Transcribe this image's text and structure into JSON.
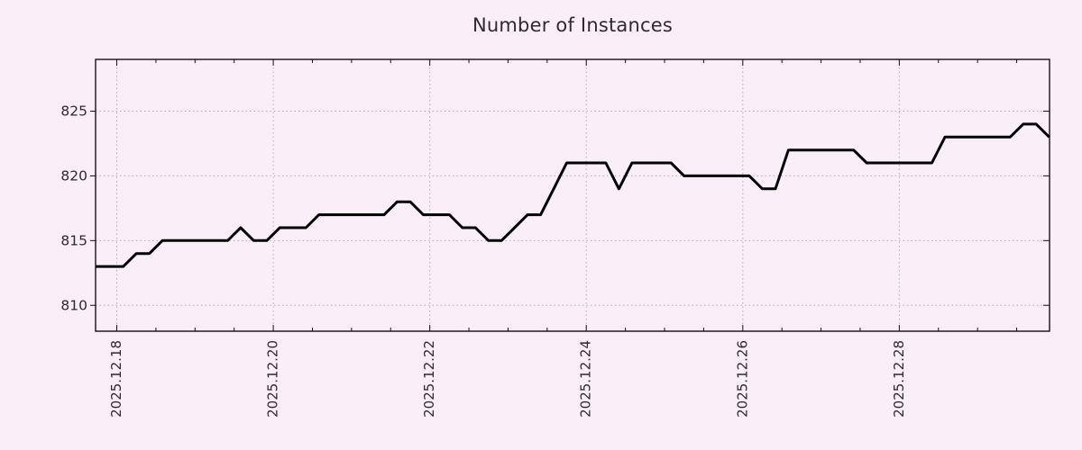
{
  "chart_data": {
    "type": "line",
    "title": "Number of Instances",
    "xlabel": "",
    "ylabel": "",
    "legend": "none",
    "grid": "dotted lines at major ticks, both axes",
    "x_axis": {
      "tick_labels": [
        "2025.12.18",
        "2025.12.20",
        "2025.12.22",
        "2025.12.24",
        "2025.12.26",
        "2025.12.28"
      ],
      "tick_day_offsets": [
        0,
        2,
        4,
        6,
        8,
        10
      ],
      "minor_tick_every_days": 0.5,
      "range_days": [
        -0.271,
        11.92
      ],
      "label_rotation_deg": 90
    },
    "y_axis": {
      "ticks": [
        810,
        815,
        820,
        825
      ],
      "range": [
        808,
        829
      ]
    },
    "series": [
      {
        "name": "Number of Instances",
        "start": "2025.12.17 18:00",
        "start_day_offset": -0.25,
        "interval_hours": 4,
        "values": [
          813,
          813,
          813,
          814,
          814,
          815,
          815,
          815,
          815,
          815,
          815,
          816,
          815,
          815,
          816,
          816,
          816,
          817,
          817,
          817,
          817,
          817,
          817,
          818,
          818,
          817,
          817,
          817,
          816,
          816,
          815,
          815,
          816,
          817,
          817,
          819,
          821,
          821,
          821,
          821,
          819,
          821,
          821,
          821,
          821,
          820,
          820,
          820,
          820,
          820,
          820,
          819,
          819,
          822,
          822,
          822,
          822,
          822,
          822,
          821,
          821,
          821,
          821,
          821,
          821,
          823,
          823,
          823,
          823,
          823,
          823,
          824,
          824,
          823
        ]
      }
    ],
    "colors": {
      "background": "#faeef9",
      "line": "#000000",
      "grid": "#b5abb5",
      "axis": "#151015",
      "text": "#2e2a2e"
    }
  }
}
